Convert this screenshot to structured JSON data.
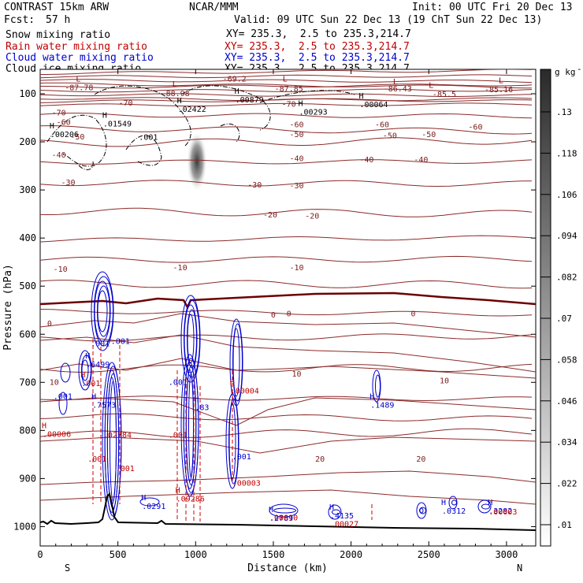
{
  "header": {
    "model": "CONTRAST 15km ARW",
    "center": "NCAR/MMM",
    "init": "Init: 00 UTC Fri 20 Dec 13",
    "fcst_label": "Fcst:",
    "fcst_value": "57 h",
    "valid": "Valid: 09 UTC Sun 22 Dec 13 (19 ChT Sun 22 Dec 13)",
    "fields": [
      {
        "name": "Snow mixing ratio",
        "xy": "XY= 235.3,  2.5 to 235.3,214.7",
        "color": "#000000"
      },
      {
        "name": "Rain water mixing ratio",
        "xy": "XY= 235.3,  2.5 to 235.3,214.7",
        "color": "#c00000"
      },
      {
        "name": "Cloud water mixing ratio",
        "xy": "XY= 235.3,  2.5 to 235.3,214.7",
        "color": "#0000cc"
      },
      {
        "name": "Cloud ice mixing ratio",
        "xy": "XY= 235.3,  2.5 to 235.3,214.7",
        "color": "#000000"
      }
    ]
  },
  "chart_data": {
    "type": "contour",
    "xlabel": "Distance (km)",
    "ylabel": "Pressure (hPa)",
    "xlim": [
      0,
      3200
    ],
    "ylim": [
      1050,
      50
    ],
    "x_ticks": [
      0,
      500,
      1000,
      1500,
      2000,
      2500,
      3000
    ],
    "y_ticks": [
      100,
      200,
      300,
      400,
      500,
      600,
      700,
      800,
      900,
      1000
    ],
    "x_end_labels": {
      "left": "S",
      "right": "N"
    },
    "colorbar": {
      "units": "g kg",
      "units_exp": "-1",
      "levels": [
        ".13",
        ".118",
        ".106",
        ".094",
        ".082",
        ".07",
        ".058",
        ".046",
        ".034",
        ".022",
        ".01"
      ]
    },
    "temperature_contours_c": [
      -80,
      -70,
      -60,
      -50,
      -40,
      -30,
      -20,
      -10,
      0,
      10,
      20
    ],
    "temperature_labels": [
      {
        "v": "-87.78",
        "x": 250,
        "p": 88
      },
      {
        "v": "-88.98",
        "x": 870,
        "p": 100
      },
      {
        "v": "-69.2",
        "x": 1250,
        "p": 70
      },
      {
        "v": "-87.85",
        "x": 1600,
        "p": 90
      },
      {
        "v": "-86.43",
        "x": 2300,
        "p": 90
      },
      {
        "v": "-85.5",
        "x": 2600,
        "p": 102
      },
      {
        "v": "-85.16",
        "x": 2950,
        "p": 92
      },
      {
        "v": "-70",
        "x": 120,
        "p": 140
      },
      {
        "v": "-70",
        "x": 550,
        "p": 120
      },
      {
        "v": "-70",
        "x": 1600,
        "p": 122
      },
      {
        "v": "-60",
        "x": 150,
        "p": 160
      },
      {
        "v": "-60",
        "x": 1650,
        "p": 165
      },
      {
        "v": "-60",
        "x": 2200,
        "p": 165
      },
      {
        "v": "-60",
        "x": 2800,
        "p": 170
      },
      {
        "v": "-50",
        "x": 240,
        "p": 190
      },
      {
        "v": "-50",
        "x": 1650,
        "p": 185
      },
      {
        "v": "-50",
        "x": 2250,
        "p": 188
      },
      {
        "v": "-50",
        "x": 2500,
        "p": 185
      },
      {
        "v": "-40",
        "x": 120,
        "p": 228
      },
      {
        "v": "-40",
        "x": 1650,
        "p": 235
      },
      {
        "v": "-40",
        "x": 2100,
        "p": 238
      },
      {
        "v": "-40",
        "x": 2450,
        "p": 238
      },
      {
        "v": "-30",
        "x": 180,
        "p": 285
      },
      {
        "v": "-30",
        "x": 1380,
        "p": 290
      },
      {
        "v": "-30",
        "x": 1650,
        "p": 292
      },
      {
        "v": "-20",
        "x": 1480,
        "p": 352
      },
      {
        "v": "-20",
        "x": 1750,
        "p": 355
      },
      {
        "v": "-10",
        "x": 130,
        "p": 465
      },
      {
        "v": "-10",
        "x": 900,
        "p": 462
      },
      {
        "v": "-10",
        "x": 1650,
        "p": 462
      },
      {
        "v": "0",
        "x": 60,
        "p": 578
      },
      {
        "v": "0",
        "x": 1500,
        "p": 560
      },
      {
        "v": "0",
        "x": 1600,
        "p": 558
      },
      {
        "v": "0",
        "x": 2400,
        "p": 558
      },
      {
        "v": "10",
        "x": 90,
        "p": 700
      },
      {
        "v": "10",
        "x": 1650,
        "p": 683
      },
      {
        "v": "10",
        "x": 2600,
        "p": 697
      },
      {
        "v": "20",
        "x": 1800,
        "p": 860
      },
      {
        "v": "20",
        "x": 2450,
        "p": 860
      }
    ],
    "extrema_labels": [
      {
        "mark": "L",
        "x": 230,
        "p": 75,
        "color": "#990000"
      },
      {
        "mark": "L",
        "x": 850,
        "p": 85,
        "color": "#990000"
      },
      {
        "mark": "L",
        "x": 1560,
        "p": 75,
        "color": "#990000"
      },
      {
        "mark": "L",
        "x": 2270,
        "p": 80,
        "color": "#990000"
      },
      {
        "mark": "L",
        "x": 2500,
        "p": 88,
        "color": "#990000"
      },
      {
        "mark": "L",
        "x": 2950,
        "p": 78,
        "color": "#990000"
      },
      {
        "mark": "H",
        "x": 1250,
        "p": 100,
        "v": ".00879",
        "color": "#000000"
      },
      {
        "mark": "H",
        "x": 880,
        "p": 120,
        "v": ".02422",
        "color": "#000000"
      },
      {
        "mark": "H",
        "x": 1660,
        "p": 125,
        "v": ".00293",
        "color": "#000000"
      },
      {
        "mark": "H",
        "x": 2050,
        "p": 110,
        "v": ".00064",
        "color": "#000000"
      },
      {
        "mark": "H",
        "x": 400,
        "p": 150,
        "v": ".01549",
        "color": "#000000"
      },
      {
        "mark": "H",
        "x": 60,
        "p": 172,
        "v": ".00206",
        "color": "#000000"
      },
      {
        "mark": "",
        "x": 630,
        "p": 196,
        "v": ".001",
        "color": "#000000"
      },
      {
        "mark": "",
        "x": 320,
        "p": 625,
        "v": ".001",
        "color": "#0000cc"
      },
      {
        "mark": "",
        "x": 450,
        "p": 620,
        "v": ".001",
        "color": "#0000cc"
      },
      {
        "mark": "H",
        "x": 290,
        "p": 650,
        "v": ".6499",
        "color": "#0000cc"
      },
      {
        "mark": "H",
        "x": 260,
        "p": 690,
        "v": ".001",
        "color": "#c00000"
      },
      {
        "mark": "H",
        "x": 330,
        "p": 735,
        "v": ".7573",
        "color": "#0000cc"
      },
      {
        "mark": "",
        "x": 80,
        "p": 735,
        "v": ".001",
        "color": "#0000cc"
      },
      {
        "mark": "H",
        "x": 10,
        "p": 795,
        "v": ".00006",
        "color": "#c00000"
      },
      {
        "mark": "",
        "x": 400,
        "p": 815,
        "v": ".02784",
        "color": "#c00000"
      },
      {
        "mark": "",
        "x": 300,
        "p": 865,
        "v": ".001",
        "color": "#c00000"
      },
      {
        "mark": "",
        "x": 480,
        "p": 885,
        "v": ".001",
        "color": "#c00000"
      },
      {
        "mark": "",
        "x": 820,
        "p": 705,
        "v": ".001",
        "color": "#0000cc"
      },
      {
        "mark": "H",
        "x": 990,
        "p": 740,
        "v": ".83",
        "color": "#0000cc"
      },
      {
        "mark": "H",
        "x": 1220,
        "p": 705,
        "v": ".00004",
        "color": "#c00000"
      },
      {
        "mark": "",
        "x": 820,
        "p": 815,
        "v": ".001",
        "color": "#c00000"
      },
      {
        "mark": "",
        "x": 1230,
        "p": 860,
        "v": ".001",
        "color": "#0000cc"
      },
      {
        "mark": "H",
        "x": 870,
        "p": 930,
        "v": ".09286",
        "color": "#c00000"
      },
      {
        "mark": "",
        "x": 1230,
        "p": 915,
        "v": ".00003",
        "color": "#c00000"
      },
      {
        "mark": "H",
        "x": 650,
        "p": 945,
        "v": ".0291",
        "color": "#0000cc"
      },
      {
        "mark": "H",
        "x": 2120,
        "p": 735,
        "v": ".1489",
        "color": "#0000cc"
      },
      {
        "mark": "H",
        "x": 1470,
        "p": 970,
        "v": ".2789",
        "color": "#0000cc"
      },
      {
        "mark": "",
        "x": 1470,
        "p": 987,
        "v": ".00010",
        "color": "#c00000"
      },
      {
        "mark": "H",
        "x": 1860,
        "p": 965,
        "v": ".4135",
        "color": "#0000cc"
      },
      {
        "mark": "",
        "x": 1860,
        "p": 1000,
        "v": ".00027",
        "color": "#c00000"
      },
      {
        "mark": "H",
        "x": 2580,
        "p": 955,
        "v": ".0312",
        "color": "#0000cc"
      },
      {
        "mark": "H",
        "x": 2880,
        "p": 955,
        "v": ".3282",
        "color": "#0000cc"
      },
      {
        "mark": "",
        "x": 2880,
        "p": 975,
        "v": ".00003",
        "color": "#c00000"
      }
    ]
  }
}
